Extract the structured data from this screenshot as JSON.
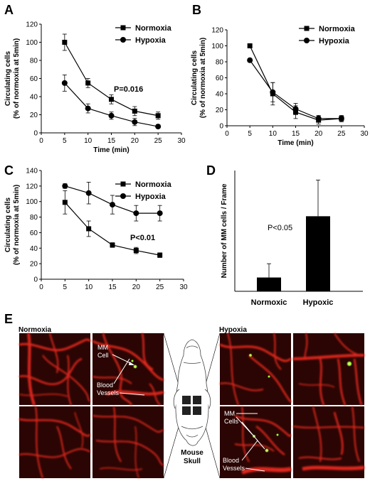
{
  "chart_data": [
    {
      "panel": "A",
      "type": "line",
      "x": [
        5,
        10,
        15,
        20,
        25
      ],
      "xlim": [
        0,
        30
      ],
      "ylim": [
        0,
        120
      ],
      "xticks": [
        0,
        5,
        10,
        15,
        20,
        25,
        30
      ],
      "yticks": [
        0,
        20,
        40,
        60,
        80,
        100,
        120
      ],
      "xlabel": "Time (min)",
      "ylabel": "Circulating cells",
      "ylabel2": "(% of normoxia at 5min)",
      "annotation": "P=0.016",
      "legend_position": "top-right",
      "series": [
        {
          "name": "Normoxia",
          "marker": "square",
          "values": [
            100,
            55,
            37,
            24,
            19
          ],
          "errors": [
            9,
            5,
            5,
            5,
            4
          ]
        },
        {
          "name": "Hypoxia",
          "marker": "circle",
          "values": [
            55,
            27,
            19,
            12,
            7
          ],
          "errors": [
            9,
            5,
            4,
            4,
            2
          ]
        }
      ]
    },
    {
      "panel": "B",
      "type": "line",
      "x": [
        5,
        10,
        15,
        20,
        25
      ],
      "xlim": [
        0,
        30
      ],
      "ylim": [
        0,
        120
      ],
      "xticks": [
        0,
        5,
        10,
        15,
        20,
        25,
        30
      ],
      "yticks": [
        0,
        20,
        40,
        60,
        80,
        100,
        120
      ],
      "xlabel": "Time (min)",
      "ylabel": "Circulating cells",
      "ylabel2": "(% of normoxia at 5min)",
      "legend_position": "top-right",
      "series": [
        {
          "name": "Normoxia",
          "marker": "square",
          "values": [
            100,
            40,
            17,
            7,
            9
          ],
          "errors": [
            0,
            14,
            8,
            5,
            4
          ]
        },
        {
          "name": "Hypoxia",
          "marker": "circle",
          "values": [
            82,
            42,
            21,
            9,
            9
          ],
          "errors": [
            0,
            12,
            7,
            4,
            3
          ]
        }
      ]
    },
    {
      "panel": "C",
      "type": "line",
      "x": [
        5,
        10,
        15,
        20,
        25
      ],
      "xlim": [
        0,
        30
      ],
      "ylim": [
        0,
        140
      ],
      "xticks": [
        0,
        5,
        10,
        15,
        20,
        25,
        30
      ],
      "yticks": [
        0,
        20,
        40,
        60,
        80,
        100,
        120,
        140
      ],
      "xlabel": "",
      "ylabel": "Circulating cells",
      "ylabel2": "(% of normoxia at 5min)",
      "annotation": "P<0.01",
      "legend_position": "top-right",
      "series": [
        {
          "name": "Normoxia",
          "marker": "square",
          "values": [
            99,
            65,
            44,
            37,
            31
          ],
          "errors": [
            15,
            10,
            3,
            4,
            3
          ]
        },
        {
          "name": "Hypoxia",
          "marker": "circle",
          "values": [
            120,
            111,
            96,
            85,
            85
          ],
          "errors": [
            3,
            14,
            12,
            10,
            10
          ]
        }
      ]
    },
    {
      "panel": "D",
      "type": "bar",
      "categories": [
        "Normoxic",
        "Hypoxic"
      ],
      "values": [
        0.8,
        4.35
      ],
      "errors": [
        0.8,
        2.1
      ],
      "ylim": [
        0,
        7
      ],
      "ylabel": "Number of MM cells / Frame",
      "annotation": "P<0.05"
    }
  ],
  "panel_letters": {
    "A": "A",
    "B": "B",
    "C": "C",
    "D": "D",
    "E": "E"
  },
  "panel_e": {
    "normoxia_title": "Normoxia",
    "hypoxia_title": "Hypoxia",
    "normoxia_labels": {
      "mm_cell_1": "MM",
      "mm_cell_2": "Cell",
      "blood_1": "Blood",
      "blood_2": "Vessels"
    },
    "hypoxia_labels": {
      "mm_cell_1": "MM",
      "mm_cell_2": "Cells",
      "blood_1": "Blood",
      "blood_2": "Vessels"
    },
    "skull_label_1": "Mouse",
    "skull_label_2": "Skull",
    "colors": {
      "vessel": "#e0281e",
      "background": "#2a0503",
      "cell": "#a8ff3a"
    }
  }
}
